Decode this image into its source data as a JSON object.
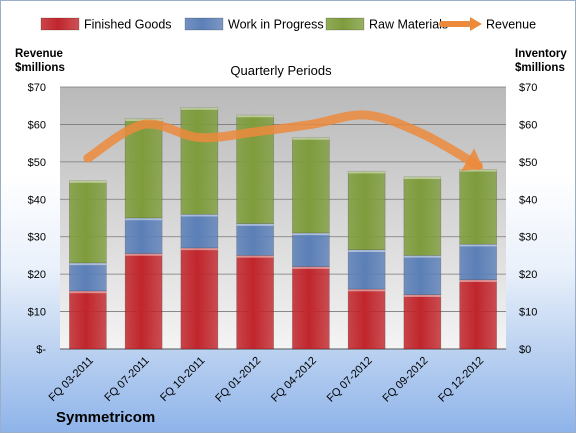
{
  "chart_data": {
    "type": "bar",
    "stacked": true,
    "title": "Quarterly Periods",
    "categories": [
      "FQ 03-2011",
      "FQ 07-2011",
      "FQ 10-2011",
      "FQ 01-2012",
      "FQ 04-2012",
      "FQ 07-2012",
      "FQ 09-2012",
      "FQ 12-2012"
    ],
    "series": [
      {
        "name": "Finished Goods",
        "color": "#c0262c",
        "values": [
          15.5,
          25.5,
          27,
          25,
          22,
          16,
          14.5,
          18.5
        ]
      },
      {
        "name": "Work in Progress",
        "color": "#5b7fb7",
        "values": [
          7.5,
          9.5,
          9,
          8.5,
          9,
          10.5,
          10.5,
          9.5
        ]
      },
      {
        "name": "Raw Materials",
        "color": "#7e9c3c",
        "values": [
          22,
          26.5,
          28.5,
          29,
          25.5,
          21,
          21,
          20
        ]
      }
    ],
    "line_series": {
      "name": "Revenue",
      "color": "#ec8a3c",
      "values": [
        51,
        60,
        56.5,
        58,
        60,
        62.5,
        57.5,
        49
      ]
    },
    "left_axis_label": "Revenue $millions",
    "right_axis_label": "Inventory $millions",
    "ylim": [
      0,
      70
    ],
    "y_ticks_left": [
      "$-",
      "$10",
      "$20",
      "$30",
      "$40",
      "$50",
      "$60",
      "$70"
    ],
    "y_ticks_right": [
      "$0",
      "$10",
      "$20",
      "$30",
      "$40",
      "$50",
      "$60",
      "$70"
    ],
    "grid": true,
    "legend_position": "top",
    "company": "Symmetricom"
  },
  "labels": {
    "left_axis_line1": "Revenue",
    "left_axis_line2": "$millions",
    "right_axis_line1": "Inventory",
    "right_axis_line2": "$millions"
  }
}
